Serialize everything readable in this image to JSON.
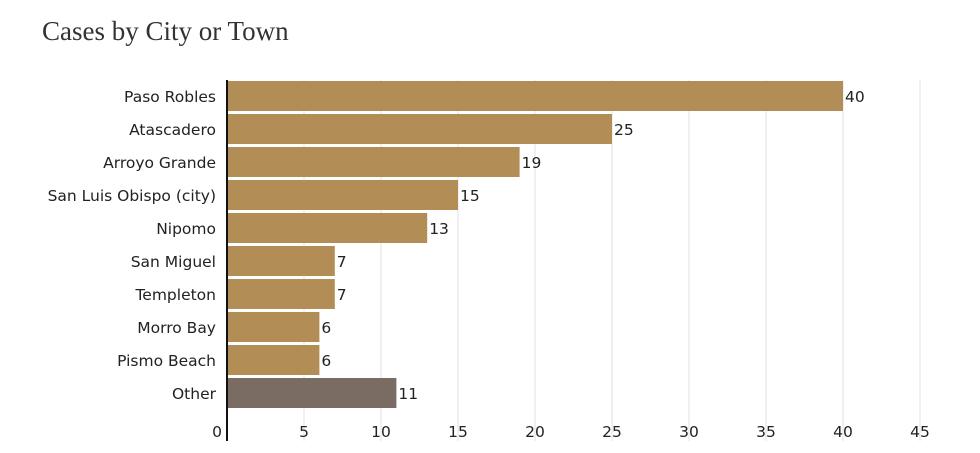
{
  "chart_data": {
    "type": "bar",
    "orientation": "horizontal",
    "title": "Cases by City or Town",
    "categories": [
      "Paso Robles",
      "Atascadero",
      "Arroyo Grande",
      "San Luis Obispo (city)",
      "Nipomo",
      "San Miguel",
      "Templeton",
      "Morro Bay",
      "Pismo Beach",
      "Other"
    ],
    "values": [
      40,
      25,
      19,
      15,
      13,
      7,
      7,
      6,
      6,
      11
    ],
    "xlim": [
      0,
      45
    ],
    "xticks": [
      0,
      5,
      10,
      15,
      20,
      25,
      30,
      35,
      40,
      45
    ],
    "grid": "vertical",
    "colors": {
      "bar": "#b28e56",
      "other_bar": "#7a6c62"
    },
    "xlabel": "",
    "ylabel": ""
  }
}
